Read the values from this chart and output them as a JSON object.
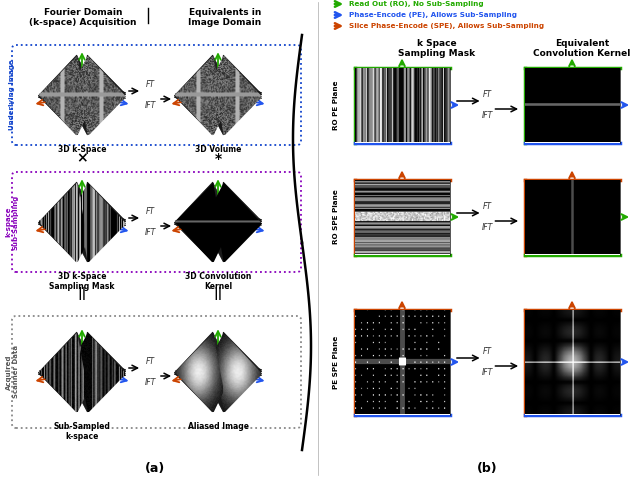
{
  "legend_items": [
    {
      "label": "Read Out (RO), No Sub-Sampling",
      "color": "#22aa00"
    },
    {
      "label": "Phase-Encode (PE), Allows Sub-Sampling",
      "color": "#2255ee"
    },
    {
      "label": "Slice Phase-Encode (SPE), Allows Sub-Sampling",
      "color": "#cc4400"
    }
  ],
  "panel_a_title_left": "Fourier Domain\n(k-space) Acquisition",
  "panel_a_title_right": "Equivalents in\nImage Domain",
  "panel_b_title_left": "k Space\nSampling Mask",
  "panel_b_title_right": "Equivalent\nConvolution Kernel",
  "row_labels_b": [
    "RO PE Plane",
    "RO SPE Plane",
    "PE SPE Plane"
  ],
  "box_labels_a": [
    [
      "3D k-Space",
      "3D Volume"
    ],
    [
      "3D k-Space\nSampling Mask",
      "3D Convolution\nKernel"
    ],
    [
      "Sub-Sampled\nk-space",
      "Aliased Image"
    ]
  ],
  "side_labels_a": [
    "Underlying Image",
    "k-space\nSub-Sampling",
    "Acquired\nScanner Data"
  ],
  "side_colors_a": [
    "#1144cc",
    "#8800bb",
    "#555555"
  ],
  "box_colors_a": [
    "#1144cc",
    "#8800bb",
    "#888888"
  ],
  "op_between_rows": [
    "×",
    "*",
    "||",
    "||"
  ],
  "panel_a_label": "(a)",
  "panel_b_label": "(b)",
  "green": "#22aa00",
  "blue": "#2255ee",
  "orange": "#cc4400"
}
